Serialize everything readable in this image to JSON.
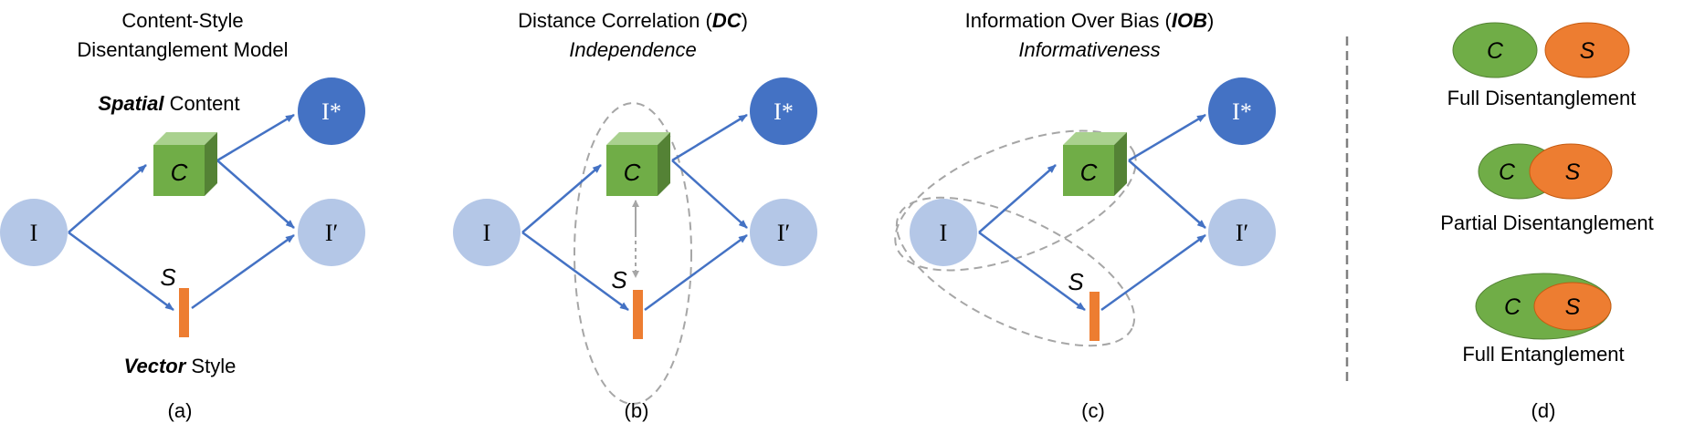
{
  "colors": {
    "node_light": "#b4c7e7",
    "node_dark": "#4472c4",
    "arrow": "#4472c4",
    "content_green": "#70ad47",
    "style_orange": "#ed7d31",
    "dashed": "#a6a6a6",
    "text": "#000000"
  },
  "panel_a": {
    "title_line1": "Content-Style",
    "title_line2": "Disentanglement Model",
    "spatial_bold": "Spatial",
    "content_word": " Content",
    "vector_bold": "Vector",
    "style_word": " Style",
    "caption": "(a)"
  },
  "panel_b": {
    "title_prefix": "Distance Correlation (",
    "title_abbr": "DC",
    "title_suffix": ")",
    "subtitle": "Independence",
    "caption": "(b)"
  },
  "panel_c": {
    "title_prefix": "Information Over Bias (",
    "title_abbr": "IOB",
    "title_suffix": ")",
    "subtitle": "Informativeness",
    "caption": "(c)"
  },
  "panel_d": {
    "full_disentanglement": "Full Disentanglement",
    "partial_disentanglement": "Partial Disentanglement",
    "full_entanglement": "Full Entanglement",
    "caption": "(d)"
  },
  "nodes": {
    "input": "I",
    "output_star": "I*",
    "output_prime": "I′",
    "content": "C",
    "style": "S"
  }
}
